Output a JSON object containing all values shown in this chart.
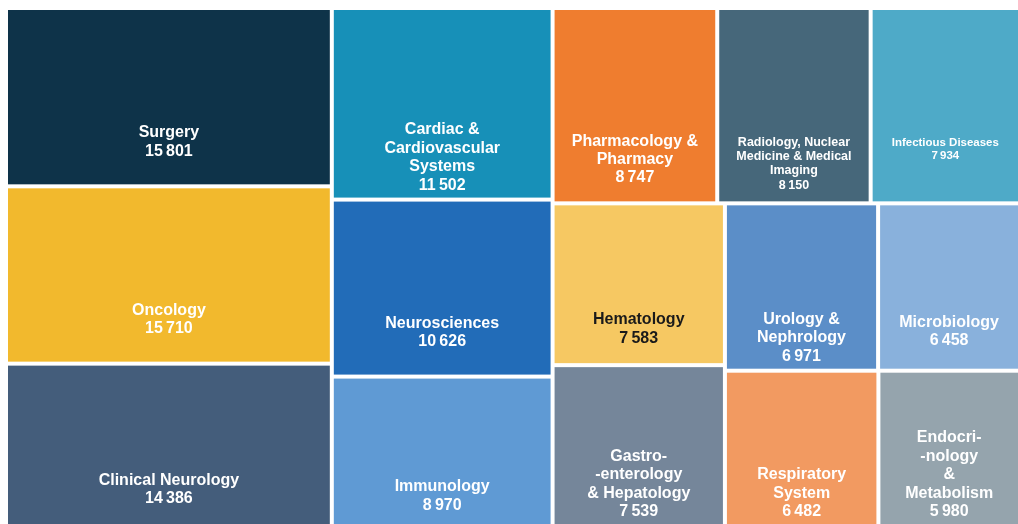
{
  "chart_data": {
    "type": "other",
    "categories": [
      "Surgery",
      "Oncology",
      "Clinical Neurology",
      "Cardiac &\nCardiovascular\nSystems",
      "Neurosciences",
      "Immunology",
      "Pharmacology &\nPharmacy",
      "Radiology, Nuclear\nMedicine & Medical\nImaging",
      "Infectious Diseases",
      "Hematology",
      "Gastro-\n-enterology\n& Hepatology",
      "Urology &\nNephrology",
      "Microbiology",
      "Respiratory\nSystem",
      "Endocri-\n-nology\n&\nMetabolism"
    ],
    "values": [
      15801,
      15710,
      14386,
      11502,
      10626,
      8970,
      8747,
      8150,
      7934,
      7583,
      7539,
      6971,
      6458,
      6482,
      5980
    ],
    "colors": [
      "#0e3349",
      "#f2b92d",
      "#445d7b",
      "#1790b8",
      "#226cb8",
      "#5f9ad4",
      "#ef7d2f",
      "#46677a",
      "#4eaac8",
      "#f6c862",
      "#75869a",
      "#5b8ec8",
      "#89b1dc",
      "#f29a61",
      "#95a4ad"
    ],
    "data_labels": true
  }
}
